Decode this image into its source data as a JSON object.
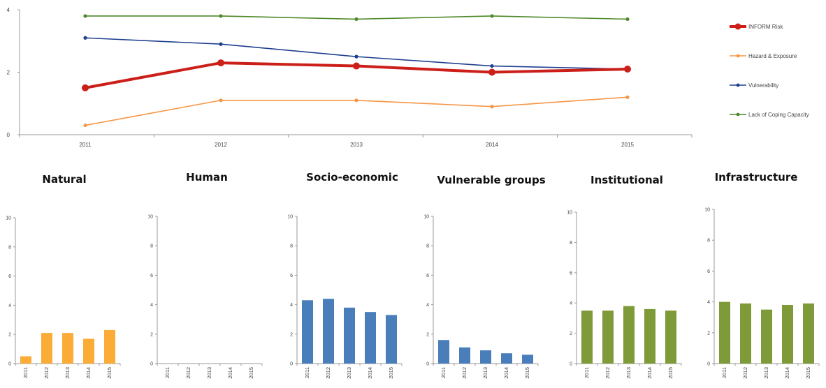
{
  "chart_data": [
    {
      "type": "line",
      "title": "",
      "xlabel": "",
      "ylabel": "",
      "x": [
        "2011",
        "2012",
        "2013",
        "2014",
        "2015"
      ],
      "ylim": [
        0,
        4
      ],
      "yticks": [
        "0",
        "2",
        "4"
      ],
      "grid": false,
      "legend_position": "right",
      "series": [
        {
          "name": "INFORM Risk",
          "color": "#cc1f1a",
          "values": [
            1.5,
            2.3,
            2.2,
            2.0,
            2.1
          ]
        },
        {
          "name": "Hazard & Exposure",
          "color": "#f79646",
          "values": [
            0.3,
            1.1,
            1.1,
            0.9,
            1.2
          ]
        },
        {
          "name": "Vulnerability",
          "color": "#1f3f8f",
          "values": [
            3.1,
            2.9,
            2.5,
            2.2,
            2.1
          ]
        },
        {
          "name": "Lack of Coping Capacity",
          "color": "#4f8a2a",
          "values": [
            3.8,
            3.8,
            3.7,
            3.8,
            3.7
          ]
        }
      ]
    },
    {
      "type": "bar",
      "title": "Natural",
      "color": "#fbac36",
      "categories": [
        "2011",
        "2012",
        "2013",
        "2014",
        "2015"
      ],
      "values": [
        0.5,
        2.1,
        2.1,
        1.7,
        2.3
      ],
      "ylim": [
        0,
        10
      ],
      "yticks": [
        "0",
        "2",
        "4",
        "6",
        "8",
        "10"
      ]
    },
    {
      "type": "bar",
      "title": "Human",
      "color": "#fbac36",
      "categories": [
        "2011",
        "2012",
        "2013",
        "2014",
        "2015"
      ],
      "values": [
        0,
        0,
        0,
        0,
        0
      ],
      "ylim": [
        0,
        10
      ],
      "yticks": [
        "0",
        "2",
        "4",
        "6",
        "8",
        "10"
      ]
    },
    {
      "type": "bar",
      "title": "Socio-economic",
      "color": "#4a7ebb",
      "categories": [
        "2011",
        "2012",
        "2013",
        "2014",
        "2015"
      ],
      "values": [
        4.3,
        4.4,
        3.8,
        3.5,
        3.3
      ],
      "ylim": [
        0,
        10
      ],
      "yticks": [
        "0",
        "2",
        "4",
        "6",
        "8",
        "10"
      ]
    },
    {
      "type": "bar",
      "title": "Vulnerable groups",
      "color": "#4a7ebb",
      "categories": [
        "2011",
        "2012",
        "2013",
        "2014",
        "2015"
      ],
      "values": [
        1.6,
        1.1,
        0.9,
        0.7,
        0.6
      ],
      "ylim": [
        0,
        10
      ],
      "yticks": [
        "0",
        "2",
        "4",
        "6",
        "8",
        "10"
      ]
    },
    {
      "type": "bar",
      "title": "Institutional",
      "color": "#7f9a39",
      "categories": [
        "2011",
        "2012",
        "2013",
        "2014",
        "2015"
      ],
      "values": [
        3.5,
        3.5,
        3.8,
        3.6,
        3.5
      ],
      "ylim": [
        0,
        10
      ],
      "yticks": [
        "0",
        "2",
        "4",
        "6",
        "8",
        "10"
      ]
    },
    {
      "type": "bar",
      "title": "Infrastructure",
      "color": "#7f9a39",
      "categories": [
        "2011",
        "2012",
        "2013",
        "2014",
        "2015"
      ],
      "values": [
        4.0,
        3.9,
        3.5,
        3.8,
        3.9
      ],
      "ylim": [
        0,
        10
      ],
      "yticks": [
        "0",
        "2",
        "4",
        "6",
        "8",
        "10"
      ]
    }
  ]
}
